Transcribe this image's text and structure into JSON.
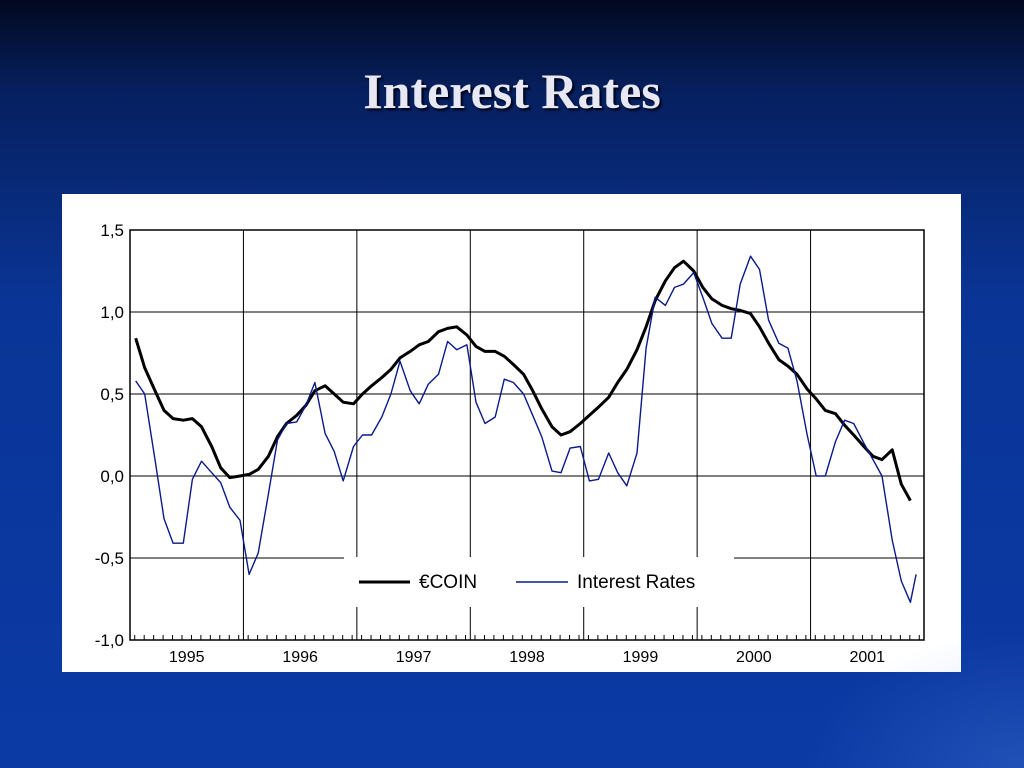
{
  "slide": {
    "title": "Interest Rates"
  },
  "colors": {
    "background": "#0b3aa5",
    "coin": "#000000",
    "interest": "#0a1a8a",
    "grid": "#000000"
  },
  "chart_data": {
    "type": "line",
    "title": "",
    "xlabel": "",
    "ylabel": "",
    "xlim": [
      1994.5,
      2001.5
    ],
    "ylim": [
      -1.0,
      1.5
    ],
    "yticks": [
      1.5,
      1.0,
      0.5,
      0.0,
      -0.5,
      -1.0
    ],
    "ytick_labels": [
      "1,5",
      "1,0",
      "0,5",
      "0,0",
      "-0,5",
      "-1,0"
    ],
    "xtick_labels": [
      {
        "label": "1995",
        "x": 1995.0
      },
      {
        "label": "1996",
        "x": 1996.0
      },
      {
        "label": "1997",
        "x": 1997.0
      },
      {
        "label": "1998",
        "x": 1998.0
      },
      {
        "label": "1999",
        "x": 1999.0
      },
      {
        "label": "2000",
        "x": 2000.0
      },
      {
        "label": "2001",
        "x": 2001.0
      }
    ],
    "grid": true,
    "legend": {
      "position": "bottom-center",
      "entries": [
        "€COIN",
        "Interest Rates"
      ]
    },
    "series": [
      {
        "name": "€COIN",
        "style": "thick",
        "x": [
          1994.55,
          1994.63,
          1994.72,
          1994.8,
          1994.88,
          1994.97,
          1995.05,
          1995.13,
          1995.22,
          1995.3,
          1995.38,
          1995.47,
          1995.55,
          1995.63,
          1995.72,
          1995.8,
          1995.88,
          1995.97,
          1996.05,
          1996.13,
          1996.22,
          1996.3,
          1996.38,
          1996.47,
          1996.55,
          1996.63,
          1996.72,
          1996.8,
          1996.88,
          1996.97,
          1997.05,
          1997.13,
          1997.22,
          1997.3,
          1997.38,
          1997.47,
          1997.55,
          1997.63,
          1997.72,
          1997.8,
          1997.88,
          1997.97,
          1998.05,
          1998.13,
          1998.22,
          1998.3,
          1998.38,
          1998.47,
          1998.55,
          1998.63,
          1998.72,
          1998.8,
          1998.88,
          1998.97,
          1999.05,
          1999.13,
          1999.22,
          1999.3,
          1999.38,
          1999.47,
          1999.55,
          1999.63,
          1999.72,
          1999.8,
          1999.88,
          1999.97,
          2000.05,
          2000.13,
          2000.22,
          2000.3,
          2000.38,
          2000.47,
          2000.55,
          2000.63,
          2000.72,
          2000.8,
          2000.88,
          2000.97,
          2001.05,
          2001.13,
          2001.22,
          2001.3,
          2001.38
        ],
        "values": [
          0.84,
          0.66,
          0.52,
          0.4,
          0.35,
          0.34,
          0.35,
          0.3,
          0.18,
          0.05,
          -0.01,
          0.0,
          0.01,
          0.04,
          0.12,
          0.24,
          0.32,
          0.37,
          0.43,
          0.52,
          0.55,
          0.5,
          0.45,
          0.44,
          0.5,
          0.55,
          0.6,
          0.65,
          0.72,
          0.76,
          0.8,
          0.82,
          0.88,
          0.9,
          0.91,
          0.86,
          0.79,
          0.76,
          0.76,
          0.73,
          0.68,
          0.62,
          0.52,
          0.41,
          0.3,
          0.25,
          0.27,
          0.32,
          0.37,
          0.42,
          0.48,
          0.57,
          0.65,
          0.77,
          0.91,
          1.07,
          1.19,
          1.27,
          1.31,
          1.25,
          1.15,
          1.08,
          1.04,
          1.02,
          1.01,
          0.99,
          0.91,
          0.81,
          0.71,
          0.67,
          0.62,
          0.53,
          0.47,
          0.4,
          0.38,
          0.31,
          0.25,
          0.18,
          0.12,
          0.1,
          0.16,
          -0.05,
          -0.15
        ]
      },
      {
        "name": "Interest Rates",
        "style": "thin",
        "x": [
          1994.55,
          1994.63,
          1994.72,
          1994.8,
          1994.88,
          1994.97,
          1995.05,
          1995.13,
          1995.22,
          1995.3,
          1995.38,
          1995.47,
          1995.55,
          1995.63,
          1995.72,
          1995.8,
          1995.88,
          1995.97,
          1996.05,
          1996.13,
          1996.22,
          1996.3,
          1996.38,
          1996.47,
          1996.55,
          1996.63,
          1996.72,
          1996.8,
          1996.88,
          1996.97,
          1997.05,
          1997.13,
          1997.22,
          1997.3,
          1997.38,
          1997.47,
          1997.55,
          1997.63,
          1997.72,
          1997.8,
          1997.88,
          1997.97,
          1998.05,
          1998.13,
          1998.22,
          1998.3,
          1998.38,
          1998.47,
          1998.55,
          1998.63,
          1998.72,
          1998.8,
          1998.88,
          1998.97,
          1999.05,
          1999.13,
          1999.22,
          1999.3,
          1999.38,
          1999.47,
          1999.55,
          1999.63,
          1999.72,
          1999.8,
          1999.88,
          1999.97,
          2000.05,
          2000.13,
          2000.22,
          2000.3,
          2000.38,
          2000.47,
          2000.55,
          2000.63,
          2000.72,
          2000.8,
          2000.88,
          2000.97,
          2001.05,
          2001.13,
          2001.22,
          2001.3,
          2001.38,
          2001.43
        ],
        "values": [
          0.58,
          0.5,
          0.1,
          -0.26,
          -0.41,
          -0.41,
          -0.02,
          0.09,
          0.02,
          -0.04,
          -0.19,
          -0.27,
          -0.6,
          -0.47,
          -0.11,
          0.22,
          0.32,
          0.33,
          0.43,
          0.57,
          0.26,
          0.15,
          -0.03,
          0.18,
          0.25,
          0.25,
          0.36,
          0.5,
          0.7,
          0.52,
          0.44,
          0.56,
          0.62,
          0.82,
          0.77,
          0.8,
          0.45,
          0.32,
          0.36,
          0.59,
          0.57,
          0.5,
          0.37,
          0.24,
          0.03,
          0.02,
          0.17,
          0.18,
          -0.03,
          -0.02,
          0.14,
          0.02,
          -0.06,
          0.14,
          0.78,
          1.09,
          1.04,
          1.15,
          1.17,
          1.24,
          1.09,
          0.93,
          0.84,
          0.84,
          1.17,
          1.34,
          1.26,
          0.95,
          0.81,
          0.78,
          0.58,
          0.25,
          0.0,
          0.0,
          0.21,
          0.34,
          0.32,
          0.2,
          0.1,
          0.0,
          -0.39,
          -0.64,
          -0.77,
          -0.6
        ]
      }
    ]
  }
}
